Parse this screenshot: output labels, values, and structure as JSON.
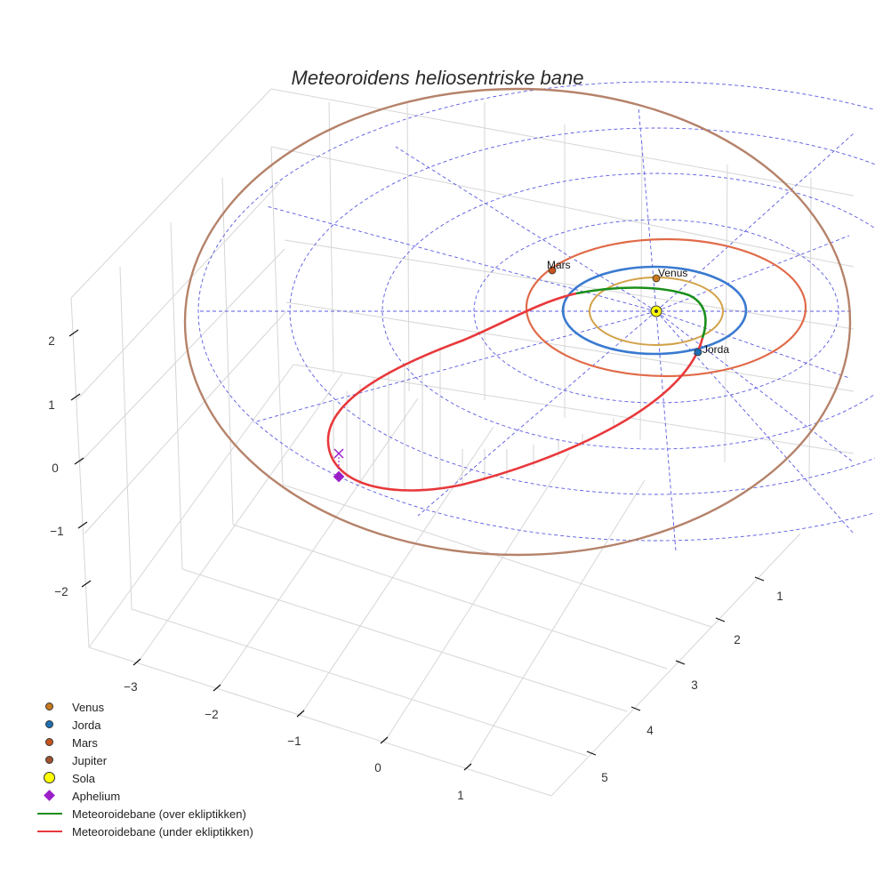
{
  "chart_data": {
    "type": "3d-line",
    "title": "Meteoroidens heliosentriske bane",
    "x_ticks": [
      "−3",
      "−2",
      "−1",
      "0",
      "1"
    ],
    "y_ticks": [
      "1",
      "2",
      "3",
      "4",
      "5"
    ],
    "z_ticks": [
      "2",
      "1",
      "0",
      "−1",
      "−2"
    ],
    "planets": [
      {
        "name": "Venus",
        "orbit_radius_au": 0.72,
        "color": "#d2a24a",
        "marker_color": "#c97a1e",
        "labeled": true
      },
      {
        "name": "Jorda",
        "orbit_radius_au": 1.0,
        "color": "#3a7ad0",
        "marker_color": "#1f6fb4",
        "labeled": true
      },
      {
        "name": "Mars",
        "orbit_radius_au": 1.52,
        "color": "#e06a48",
        "marker_color": "#c8541d",
        "labeled": true
      },
      {
        "name": "Jupiter",
        "orbit_radius_au": 5.2,
        "color": "#b5826a",
        "marker_color": "#a0522d",
        "labeled": false
      }
    ],
    "sun": {
      "name": "Sola",
      "color": "#ffff00"
    },
    "aphelium": {
      "name": "Aphelium",
      "color": "#9b1fc9"
    },
    "ecliptic_grid_rings_au": [
      1,
      2,
      3,
      4
    ],
    "trajectory": [
      {
        "name": "Meteoroidebane (over ekliptikken)",
        "color": "#1a8f1a"
      },
      {
        "name": "Meteoroidebane (under ekliptikken)",
        "color": "#e8383b"
      }
    ]
  },
  "legend": [
    {
      "label": "Venus",
      "kind": "dot",
      "color": "#c97a1e"
    },
    {
      "label": "Jorda",
      "kind": "dot",
      "color": "#1f6fb4"
    },
    {
      "label": "Mars",
      "kind": "dot",
      "color": "#c8541d"
    },
    {
      "label": "Jupiter",
      "kind": "dot",
      "color": "#a0522d"
    },
    {
      "label": "Sola",
      "kind": "bigdot",
      "color": "#ffff00"
    },
    {
      "label": "Aphelium",
      "kind": "diamond",
      "color": "#9b1fc9"
    },
    {
      "label": "Meteoroidebane (over ekliptikken)",
      "kind": "line",
      "color": "#1a8f1a"
    },
    {
      "label": "Meteoroidebane (under ekliptikken)",
      "kind": "line",
      "color": "#e8383b"
    }
  ]
}
